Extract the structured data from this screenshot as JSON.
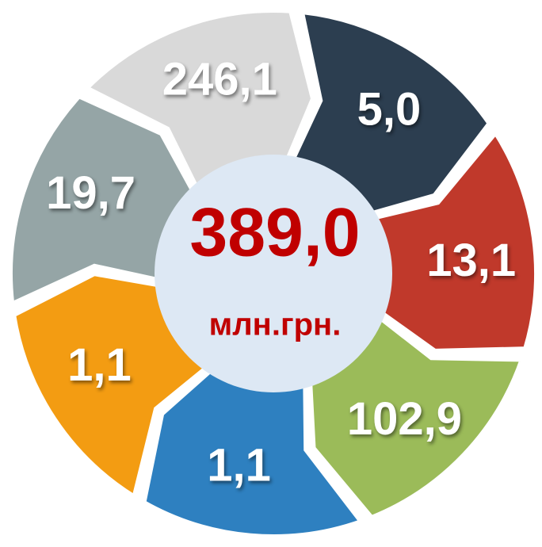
{
  "center": {
    "value": "389,0",
    "unit": "млн.грн."
  },
  "segments": [
    {
      "label": "5,0",
      "color": "#2c3e50"
    },
    {
      "label": "13,1",
      "color": "#c0392b"
    },
    {
      "label": "102,9",
      "color": "#9bbb59"
    },
    {
      "label": "1,1",
      "color": "#2e80c0"
    },
    {
      "label": "1,1",
      "color": "#f39c12"
    },
    {
      "label": "19,7",
      "color": "#95a5a6"
    },
    {
      "label": "246,1",
      "color": "#d9d9d9"
    }
  ]
}
